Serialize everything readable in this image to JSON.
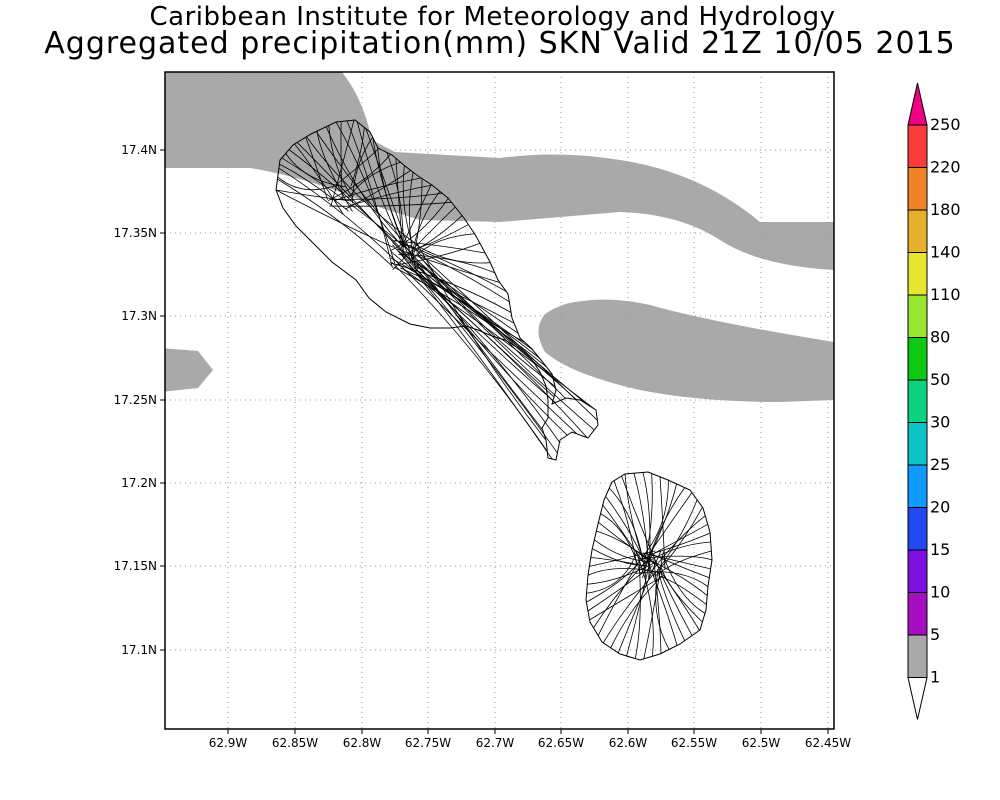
{
  "header": {
    "institute": "Caribbean Institute for Meteorology and Hydrology",
    "product": "Aggregated precipitation(mm) SKN Valid 21Z 10/05 2015"
  },
  "axes": {
    "lat_labels": [
      "17.4N",
      "17.35N",
      "17.3N",
      "17.25N",
      "17.2N",
      "17.15N",
      "17.1N"
    ],
    "lon_labels": [
      "62.9W",
      "62.85W",
      "62.8W",
      "62.75W",
      "62.7W",
      "62.65W",
      "62.6W",
      "62.55W",
      "62.5W",
      "62.45W"
    ]
  },
  "colorbar": {
    "levels": [
      "1",
      "5",
      "10",
      "15",
      "20",
      "25",
      "30",
      "50",
      "80",
      "110",
      "140",
      "180",
      "220",
      "250"
    ],
    "colors": [
      "#a9a9a9",
      "#a50fbf",
      "#7c0fde",
      "#2448f2",
      "#0f9bff",
      "#0fc3c8",
      "#0fd27f",
      "#0fc814",
      "#96e632",
      "#e6e632",
      "#e6af2d",
      "#f08228",
      "#fa3c3c",
      "#f00082"
    ],
    "below_color": "#ffffff"
  },
  "precip_color": "#a9a9a9"
}
